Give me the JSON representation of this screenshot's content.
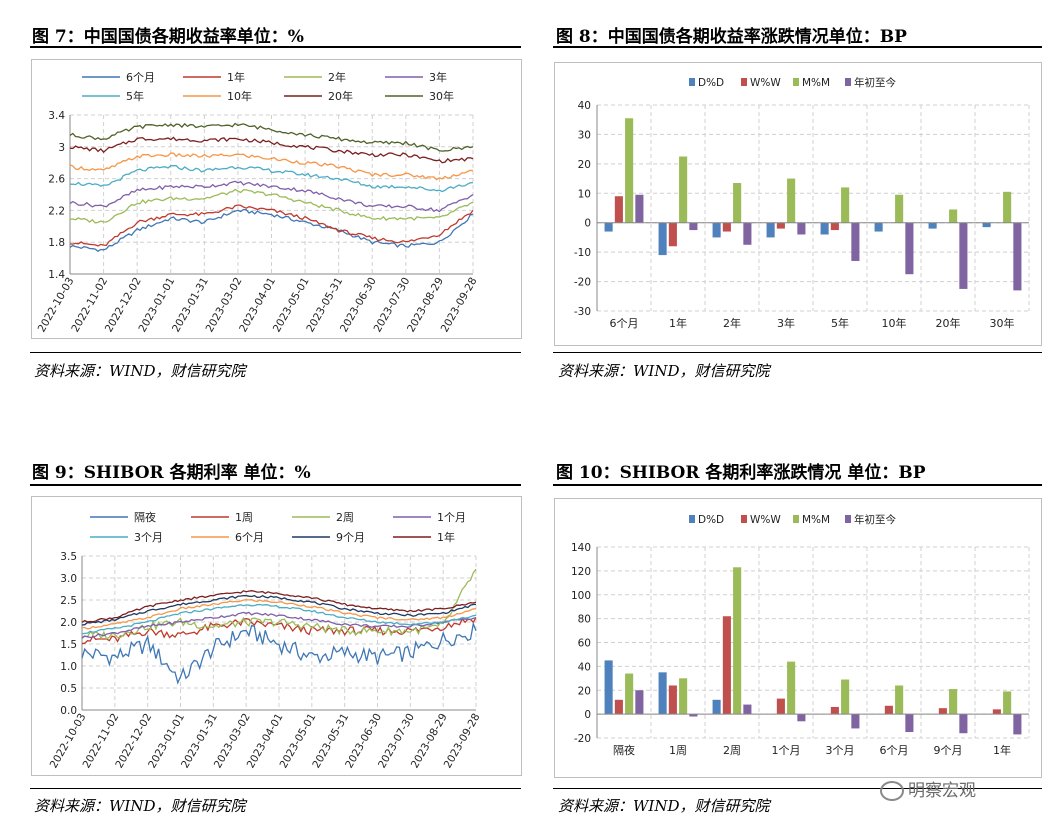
{
  "panels": [
    {
      "title": "图 7：中国国债各期收益率单位：%",
      "source": "资料来源：WIND，财信研究院",
      "chart_data": {
        "type": "line",
        "x": [
          "2022-10-03",
          "2022-11-02",
          "2022-12-02",
          "2023-01-01",
          "2023-01-31",
          "2023-03-02",
          "2023-04-01",
          "2023-05-01",
          "2023-05-31",
          "2023-06-30",
          "2023-07-30",
          "2023-08-29",
          "2023-09-28"
        ],
        "ylim": [
          1.4,
          3.4
        ],
        "yticks": [
          1.4,
          1.8,
          2.2,
          2.6,
          3,
          3.4
        ],
        "grid": true,
        "legend_position": "top",
        "series": [
          {
            "name": "6个月",
            "color": "#3e77b6",
            "values": [
              1.75,
              1.7,
              1.95,
              2.1,
              2.05,
              2.2,
              2.15,
              2.05,
              1.95,
              1.8,
              1.75,
              1.8,
              2.15
            ]
          },
          {
            "name": "1年",
            "color": "#c0392b",
            "values": [
              1.8,
              1.75,
              2.05,
              2.15,
              2.15,
              2.25,
              2.2,
              2.1,
              1.95,
              1.85,
              1.8,
              1.9,
              2.2
            ]
          },
          {
            "name": "2年",
            "color": "#9bbb59",
            "values": [
              2.1,
              2.05,
              2.3,
              2.35,
              2.35,
              2.45,
              2.4,
              2.3,
              2.2,
              2.1,
              2.1,
              2.1,
              2.3
            ]
          },
          {
            "name": "3年",
            "color": "#7f5fa9",
            "values": [
              2.3,
              2.25,
              2.45,
              2.5,
              2.5,
              2.55,
              2.5,
              2.45,
              2.35,
              2.25,
              2.25,
              2.2,
              2.4
            ]
          },
          {
            "name": "5年",
            "color": "#4bacc6",
            "values": [
              2.55,
              2.5,
              2.7,
              2.75,
              2.7,
              2.75,
              2.7,
              2.65,
              2.6,
              2.5,
              2.5,
              2.45,
              2.55
            ]
          },
          {
            "name": "10年",
            "color": "#f79646",
            "values": [
              2.75,
              2.7,
              2.88,
              2.9,
              2.88,
              2.9,
              2.85,
              2.8,
              2.75,
              2.65,
              2.65,
              2.6,
              2.7
            ]
          },
          {
            "name": "20年",
            "color": "#7b1f1f",
            "values": [
              3.0,
              2.95,
              3.1,
              3.1,
              3.08,
              3.1,
              3.05,
              3.0,
              2.95,
              2.9,
              2.9,
              2.82,
              2.85
            ]
          },
          {
            "name": "30年",
            "color": "#4f6228",
            "values": [
              3.15,
              3.1,
              3.25,
              3.28,
              3.25,
              3.28,
              3.22,
              3.15,
              3.1,
              3.05,
              3.05,
              2.95,
              3.0
            ]
          }
        ]
      }
    },
    {
      "title": "图 8：中国国债各期收益率涨跌情况单位：BP",
      "source": "资料来源：WIND，财信研究院",
      "chart_data": {
        "type": "bar",
        "categories": [
          "6个月",
          "1年",
          "2年",
          "3年",
          "5年",
          "10年",
          "20年",
          "30年"
        ],
        "ylim": [
          -30,
          40
        ],
        "yticks": [
          -30,
          -20,
          -10,
          0,
          10,
          20,
          30,
          40
        ],
        "grid": true,
        "legend_position": "top",
        "series": [
          {
            "name": "D%D",
            "color": "#4f81bd",
            "values": [
              -3,
              -11,
              -5,
              -5,
              -4,
              -3,
              -2,
              -1.5
            ]
          },
          {
            "name": "W%W",
            "color": "#c0504d",
            "values": [
              9,
              -8,
              -3,
              -2,
              -2.5,
              0,
              0,
              0
            ]
          },
          {
            "name": "M%M",
            "color": "#9bbb59",
            "values": [
              35.5,
              22.5,
              13.5,
              15,
              12,
              9.5,
              4.5,
              10.5
            ]
          },
          {
            "name": "年初至今",
            "color": "#8064a2",
            "values": [
              9.5,
              -2.5,
              -7.5,
              -4,
              -13,
              -17.5,
              -22.5,
              -23
            ]
          }
        ]
      }
    },
    {
      "title": "图 9：SHIBOR 各期利率 单位：%",
      "source": "资料来源：WIND，财信研究院",
      "chart_data": {
        "type": "line",
        "x": [
          "2022-10-03",
          "2022-11-02",
          "2022-12-02",
          "2023-01-01",
          "2023-01-31",
          "2023-03-02",
          "2023-04-01",
          "2023-05-01",
          "2023-05-31",
          "2023-06-30",
          "2023-07-30",
          "2023-08-29",
          "2023-09-28"
        ],
        "ylim": [
          0.0,
          3.5
        ],
        "yticks": [
          "0.0",
          "0.5",
          "1.0",
          "1.5",
          "2.0",
          "2.5",
          "3.0",
          "3.5"
        ],
        "grid": true,
        "legend_position": "top",
        "series": [
          {
            "name": "隔夜",
            "color": "#3e77b6",
            "values": [
              1.3,
              1.2,
              1.5,
              0.7,
              1.4,
              1.8,
              1.5,
              1.2,
              1.3,
              1.2,
              1.3,
              1.6,
              1.8
            ]
          },
          {
            "name": "1周",
            "color": "#c0392b",
            "values": [
              1.6,
              1.6,
              1.8,
              1.7,
              1.9,
              2.0,
              1.9,
              1.8,
              1.8,
              1.8,
              1.8,
              1.9,
              2.1
            ]
          },
          {
            "name": "2周",
            "color": "#9bbb59",
            "values": [
              1.7,
              1.7,
              1.9,
              2.0,
              1.9,
              2.0,
              2.0,
              1.9,
              1.8,
              1.8,
              1.8,
              1.9,
              3.2
            ]
          },
          {
            "name": "1个月",
            "color": "#7f5fa9",
            "values": [
              1.65,
              1.75,
              1.9,
              2.0,
              2.1,
              2.2,
              2.15,
              2.05,
              1.95,
              1.9,
              1.9,
              2.0,
              2.1
            ]
          },
          {
            "name": "3个月",
            "color": "#4bacc6",
            "values": [
              1.75,
              1.85,
              2.0,
              2.2,
              2.3,
              2.4,
              2.35,
              2.25,
              2.1,
              2.0,
              1.95,
              2.0,
              2.15
            ]
          },
          {
            "name": "6个月",
            "color": "#f79646",
            "values": [
              1.85,
              1.95,
              2.1,
              2.3,
              2.4,
              2.5,
              2.45,
              2.35,
              2.2,
              2.1,
              2.05,
              2.1,
              2.3
            ]
          },
          {
            "name": "9个月",
            "color": "#1f3864",
            "values": [
              1.95,
              2.05,
              2.25,
              2.4,
              2.5,
              2.6,
              2.55,
              2.45,
              2.3,
              2.2,
              2.15,
              2.2,
              2.4
            ]
          },
          {
            "name": "1年",
            "color": "#7b1f1f",
            "values": [
              2.0,
              2.1,
              2.35,
              2.5,
              2.6,
              2.7,
              2.65,
              2.55,
              2.4,
              2.3,
              2.25,
              2.3,
              2.45
            ]
          }
        ]
      }
    },
    {
      "title": "图 10：SHIBOR 各期利率涨跌情况 单位：BP",
      "source": "资料来源：WIND，财信研究院",
      "chart_data": {
        "type": "bar",
        "categories": [
          "隔夜",
          "1周",
          "2周",
          "1个月",
          "3个月",
          "6个月",
          "9个月",
          "1年"
        ],
        "ylim": [
          -20,
          140
        ],
        "yticks": [
          -20,
          0,
          20,
          40,
          60,
          80,
          100,
          120,
          140
        ],
        "grid": true,
        "legend_position": "top",
        "series": [
          {
            "name": "D%D",
            "color": "#4f81bd",
            "values": [
              45,
              35,
              12,
              0,
              0,
              0,
              0,
              0
            ]
          },
          {
            "name": "W%W",
            "color": "#c0504d",
            "values": [
              12,
              24,
              82,
              13,
              6,
              7,
              5,
              4
            ]
          },
          {
            "name": "M%M",
            "color": "#9bbb59",
            "values": [
              34,
              30,
              123,
              44,
              29,
              24,
              21,
              19
            ]
          },
          {
            "name": "年初至今",
            "color": "#8064a2",
            "values": [
              20,
              -2,
              8,
              -6,
              -12,
              -15,
              -16,
              -17
            ]
          }
        ]
      }
    }
  ],
  "watermark": {
    "text": "明察宏观",
    "icon": "wechat-icon"
  }
}
